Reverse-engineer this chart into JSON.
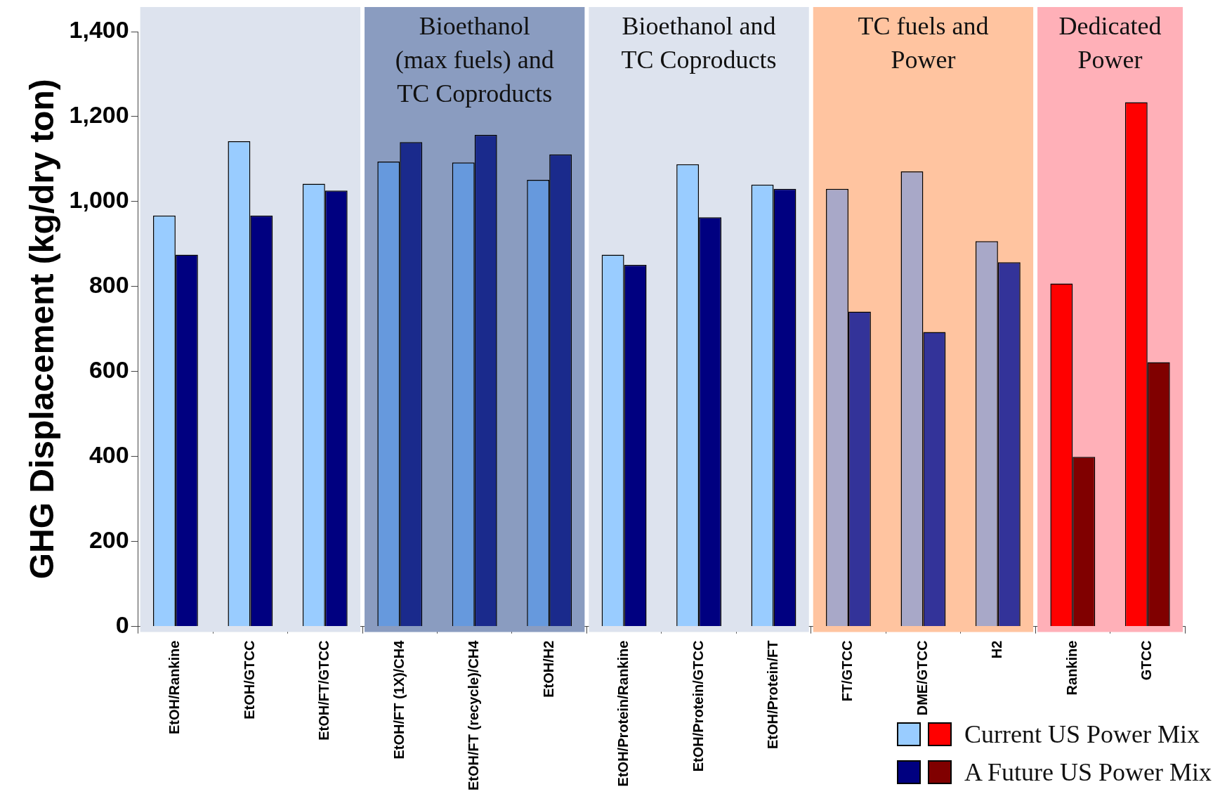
{
  "chart_data": {
    "type": "bar",
    "ylabel": "GHG Displacement (kg/dry ton)",
    "categories": [
      "EtOH/Rankine",
      "EtOH/GTCC",
      "EtOH/FT/GTCC",
      "EtOH/FT (1X)/CH4",
      "EtOH/FT (recycle)/CH4",
      "EtOH/H2",
      "EtOH/Protein/Rankine",
      "EtOH/Protein/GTCC",
      "EtOH/Protein/FT",
      "FT/GTCC",
      "DME/GTCC",
      "H2",
      "Rankine",
      "GTCC"
    ],
    "series": [
      {
        "name": "Current US Power Mix",
        "colors": [
          "#99ccff",
          "#99ccff",
          "#99ccff",
          "#6699dd",
          "#6699dd",
          "#6699dd",
          "#99ccff",
          "#99ccff",
          "#99ccff",
          "#a8a8c8",
          "#a8a8c8",
          "#a8a8c8",
          "#ff0000",
          "#ff0000"
        ],
        "values": [
          967,
          1142,
          1042,
          1094,
          1092,
          1051,
          875,
          1088,
          1040,
          1030,
          1071,
          907,
          807,
          1234
        ]
      },
      {
        "name": "A Future US Power Mix",
        "colors": [
          "#000080",
          "#000080",
          "#000080",
          "#1a2a8c",
          "#1a2a8c",
          "#1a2a8c",
          "#000080",
          "#000080",
          "#000080",
          "#333399",
          "#333399",
          "#333399",
          "#800000",
          "#800000"
        ],
        "values": [
          875,
          967,
          1026,
          1140,
          1157,
          1111,
          851,
          963,
          1030,
          741,
          693,
          857,
          399,
          622
        ]
      }
    ],
    "ylim": [
      0,
      1400
    ],
    "yticks": [
      {
        "value": 0,
        "label": "0"
      },
      {
        "value": 200,
        "label": "200"
      },
      {
        "value": 400,
        "label": "400"
      },
      {
        "value": 600,
        "label": "600"
      },
      {
        "value": 800,
        "label": "800"
      },
      {
        "value": 1000,
        "label": "1,000"
      },
      {
        "value": 1200,
        "label": "1,200"
      },
      {
        "value": 1400,
        "label": "1,400"
      }
    ],
    "bands": [
      {
        "axis": "x",
        "from": "EtOH/Rankine",
        "to": "EtOH/FT/GTCC",
        "color": "#dde3ee"
      },
      {
        "axis": "x",
        "from": "EtOH/FT (1X)/CH4",
        "to": "EtOH/H2",
        "label": "Bioethanol\n(max fuels) and\nTC Coproducts",
        "color": "#8a9cc0"
      },
      {
        "axis": "x",
        "from": "EtOH/Protein/Rankine",
        "to": "EtOH/Protein/FT",
        "label": "Bioethanol and\nTC Coproducts",
        "color": "#dde3ee"
      },
      {
        "axis": "x",
        "from": "FT/GTCC",
        "to": "H2",
        "label": "TC fuels and\nPower",
        "color": "#ffc4a0"
      },
      {
        "axis": "x",
        "from": "Rankine",
        "to": "GTCC",
        "label": "Dedicated\nPower",
        "color": "#ffb0b8"
      }
    ],
    "grid": false,
    "legend": "bottom right"
  }
}
